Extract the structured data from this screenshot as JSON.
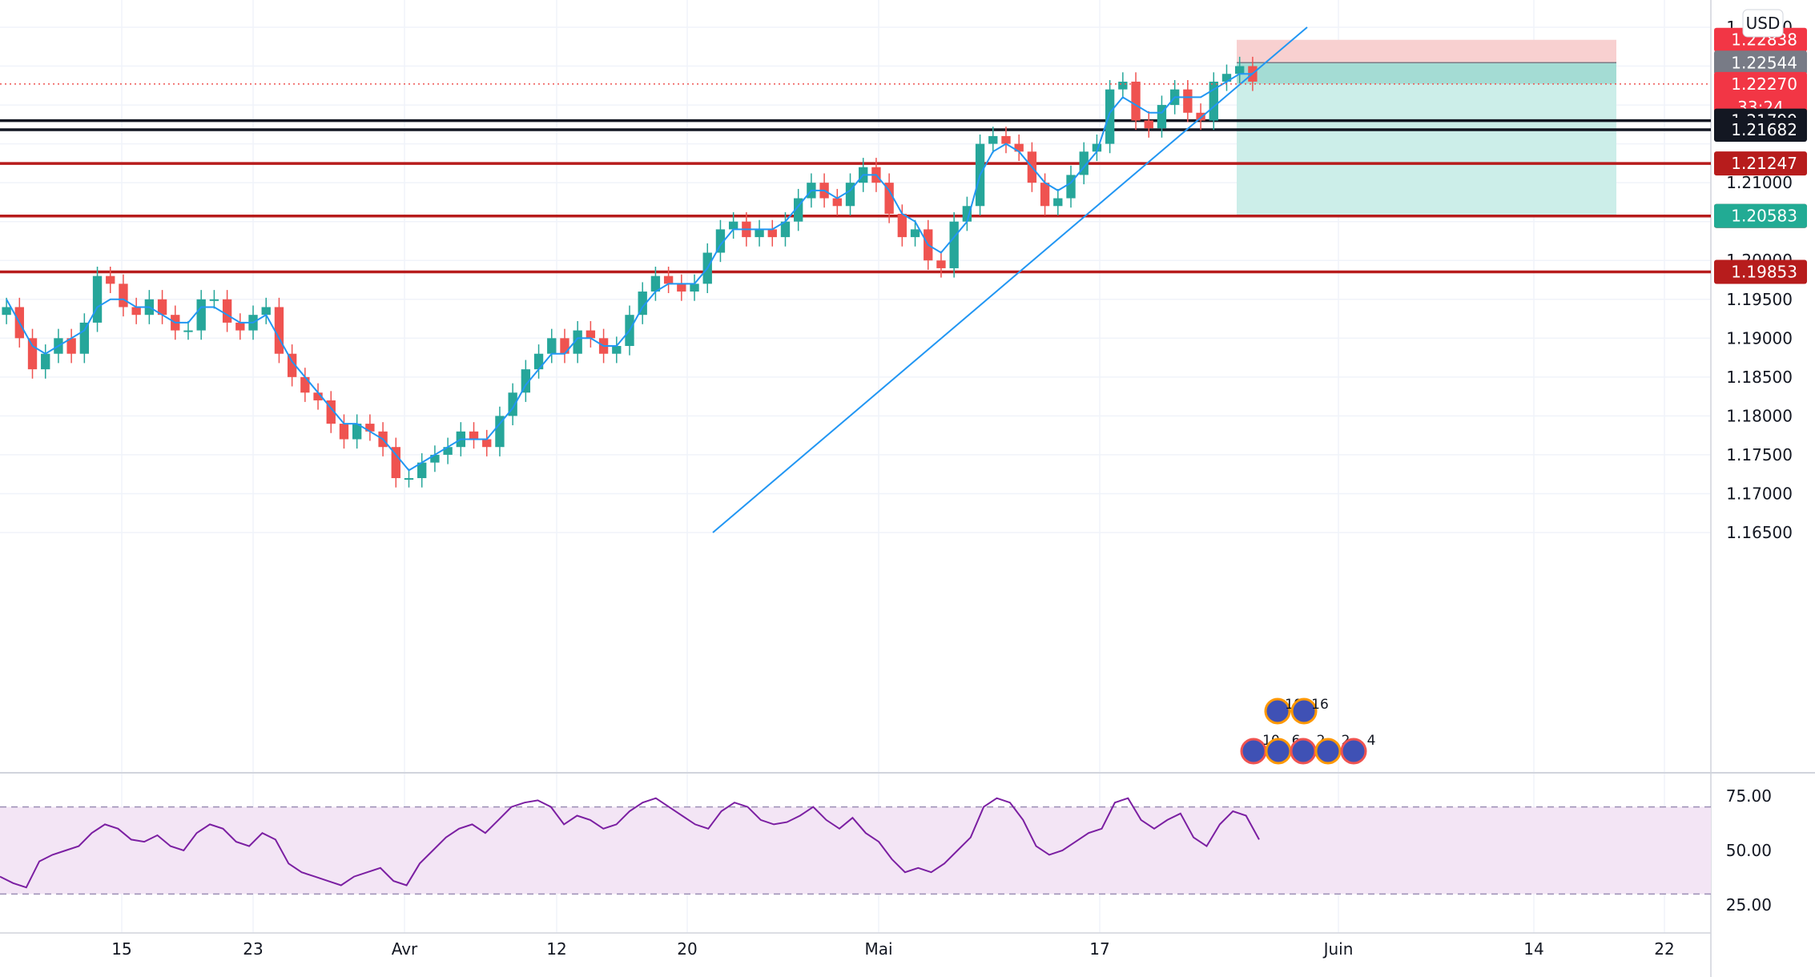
{
  "currency": "USD",
  "colors": {
    "up": "#26a69a",
    "down": "#ef5350",
    "ma": "#2196f3",
    "rsi": "#7b1fa2",
    "rsi_band": "#f3e5f5",
    "black_level": "#131722",
    "red_level": "#b71c1c",
    "stop_zone": "#f8d0d0",
    "target_zone": "#cceee9",
    "entry_zone": "#a4dcd4"
  },
  "chart_data": {
    "type": "candlestick",
    "symbol_currency": "USD",
    "price_axis_ticks": [
      "1.23000",
      "1.21000",
      "1.20000",
      "1.19500",
      "1.19000",
      "1.18500",
      "1.18000",
      "1.17500",
      "1.17000",
      "1.16500"
    ],
    "time_axis_ticks": [
      "15",
      "23",
      "Avr",
      "12",
      "20",
      "Mai",
      "17",
      "Juin",
      "14",
      "22"
    ],
    "ylim": [
      1.165,
      1.232
    ],
    "series": [
      {
        "name": "EUR/USD",
        "kind": "ohlc-close-approx",
        "closes": [
          1.194,
          1.19,
          1.186,
          1.188,
          1.19,
          1.188,
          1.192,
          1.198,
          1.197,
          1.194,
          1.193,
          1.195,
          1.193,
          1.191,
          1.191,
          1.195,
          1.195,
          1.192,
          1.191,
          1.193,
          1.194,
          1.188,
          1.185,
          1.183,
          1.182,
          1.179,
          1.177,
          1.179,
          1.178,
          1.176,
          1.172,
          1.172,
          1.174,
          1.175,
          1.176,
          1.178,
          1.177,
          1.176,
          1.18,
          1.183,
          1.186,
          1.188,
          1.19,
          1.188,
          1.191,
          1.19,
          1.188,
          1.189,
          1.193,
          1.196,
          1.198,
          1.197,
          1.196,
          1.197,
          1.201,
          1.204,
          1.205,
          1.203,
          1.204,
          1.203,
          1.205,
          1.208,
          1.21,
          1.208,
          1.207,
          1.21,
          1.212,
          1.21,
          1.206,
          1.203,
          1.204,
          1.2,
          1.199,
          1.205,
          1.207,
          1.215,
          1.216,
          1.215,
          1.214,
          1.21,
          1.207,
          1.208,
          1.211,
          1.214,
          1.215,
          1.222,
          1.223,
          1.218,
          1.217,
          1.22,
          1.222,
          1.219,
          1.218,
          1.223,
          1.224,
          1.225,
          1.223
        ]
      },
      {
        "name": "Moyenne mobile",
        "kind": "line",
        "values": [
          1.195,
          1.192,
          1.189,
          1.188,
          1.189,
          1.19,
          1.191,
          1.194,
          1.195,
          1.195,
          1.194,
          1.194,
          1.193,
          1.192,
          1.192,
          1.194,
          1.194,
          1.193,
          1.192,
          1.192,
          1.193,
          1.19,
          1.187,
          1.185,
          1.183,
          1.181,
          1.179,
          1.179,
          1.178,
          1.177,
          1.175,
          1.173,
          1.174,
          1.175,
          1.176,
          1.177,
          1.177,
          1.177,
          1.179,
          1.181,
          1.184,
          1.186,
          1.188,
          1.188,
          1.19,
          1.19,
          1.189,
          1.189,
          1.191,
          1.194,
          1.196,
          1.197,
          1.197,
          1.197,
          1.199,
          1.202,
          1.204,
          1.204,
          1.204,
          1.204,
          1.205,
          1.207,
          1.209,
          1.209,
          1.208,
          1.209,
          1.211,
          1.211,
          1.209,
          1.206,
          1.205,
          1.202,
          1.201,
          1.203,
          1.205,
          1.211,
          1.214,
          1.215,
          1.214,
          1.212,
          1.21,
          1.209,
          1.21,
          1.212,
          1.214,
          1.219,
          1.221,
          1.22,
          1.219,
          1.219,
          1.221,
          1.221,
          1.221,
          1.222,
          1.223,
          1.224,
          1.224
        ]
      }
    ],
    "levels": [
      {
        "label": "1.21799",
        "value": 1.21799,
        "color": "#131722"
      },
      {
        "label": "1.21682",
        "value": 1.21682,
        "color": "#131722"
      },
      {
        "label": "1.21247",
        "value": 1.21247,
        "color": "#b71c1c"
      },
      {
        "label": "1.20571",
        "value": 1.20571,
        "color": "#b71c1c"
      },
      {
        "label": "1.19853",
        "value": 1.19853,
        "color": "#b71c1c"
      }
    ],
    "position": {
      "stop": {
        "label": "1.22838",
        "value": 1.22838
      },
      "entry": {
        "label": "1.22544",
        "value": 1.22544
      },
      "target": {
        "label": "1.20583",
        "value": 1.20583
      }
    },
    "last_price": {
      "label": "1.22270",
      "value": 1.2227,
      "countdown": "33:24"
    },
    "trendline": [
      {
        "at": "Avr 20",
        "value": 1.165
      },
      {
        "at": "Mai 23",
        "value": 1.23
      }
    ],
    "event_markers": {
      "row1": [
        "10",
        "16"
      ],
      "row2": [
        "10",
        "6",
        "2",
        "2",
        "4"
      ]
    },
    "rsi": {
      "ticks": [
        "75.00",
        "50.00",
        "25.00"
      ],
      "upper": 70,
      "lower": 30,
      "ylim": [
        20,
        80
      ],
      "values": [
        38,
        35,
        33,
        45,
        48,
        50,
        52,
        58,
        62,
        60,
        55,
        54,
        57,
        52,
        50,
        58,
        62,
        60,
        54,
        52,
        58,
        55,
        44,
        40,
        38,
        36,
        34,
        38,
        40,
        42,
        36,
        34,
        44,
        50,
        56,
        60,
        62,
        58,
        64,
        70,
        72,
        73,
        70,
        62,
        66,
        64,
        60,
        62,
        68,
        72,
        74,
        70,
        66,
        62,
        60,
        68,
        72,
        70,
        64,
        62,
        63,
        66,
        70,
        64,
        60,
        65,
        58,
        54,
        46,
        40,
        42,
        40,
        44,
        50,
        56,
        70,
        74,
        72,
        64,
        52,
        48,
        50,
        54,
        58,
        60,
        72,
        74,
        64,
        60,
        64,
        67,
        56,
        52,
        62,
        68,
        66,
        55
      ]
    }
  }
}
